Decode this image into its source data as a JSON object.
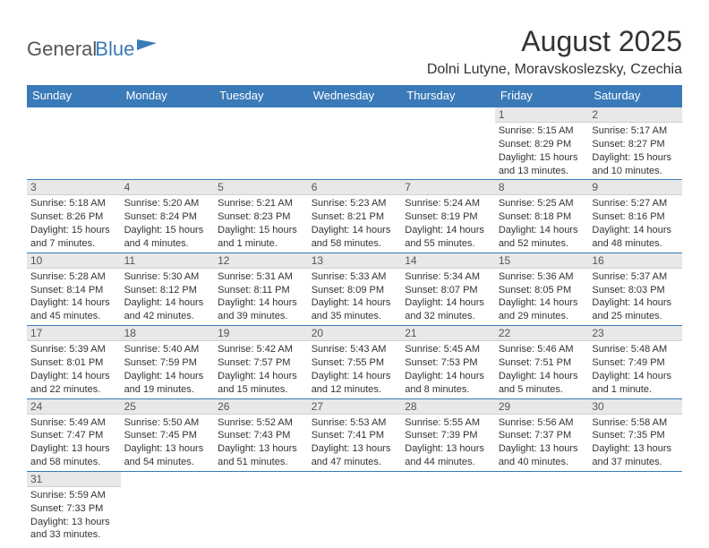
{
  "logo": {
    "part1": "General",
    "part2": "Blue"
  },
  "title": "August 2025",
  "location": "Dolni Lutyne, Moravskoslezsky, Czechia",
  "colors": {
    "header_bg": "#3a7ab8",
    "header_text": "#ffffff",
    "daynum_bg": "#e8e8e8",
    "border": "#3a7ab8",
    "body_text": "#333333"
  },
  "days_of_week": [
    "Sunday",
    "Monday",
    "Tuesday",
    "Wednesday",
    "Thursday",
    "Friday",
    "Saturday"
  ],
  "weeks": [
    [
      null,
      null,
      null,
      null,
      null,
      {
        "n": "1",
        "sunrise": "5:15 AM",
        "sunset": "8:29 PM",
        "daylight": "15 hours and 13 minutes."
      },
      {
        "n": "2",
        "sunrise": "5:17 AM",
        "sunset": "8:27 PM",
        "daylight": "15 hours and 10 minutes."
      }
    ],
    [
      {
        "n": "3",
        "sunrise": "5:18 AM",
        "sunset": "8:26 PM",
        "daylight": "15 hours and 7 minutes."
      },
      {
        "n": "4",
        "sunrise": "5:20 AM",
        "sunset": "8:24 PM",
        "daylight": "15 hours and 4 minutes."
      },
      {
        "n": "5",
        "sunrise": "5:21 AM",
        "sunset": "8:23 PM",
        "daylight": "15 hours and 1 minute."
      },
      {
        "n": "6",
        "sunrise": "5:23 AM",
        "sunset": "8:21 PM",
        "daylight": "14 hours and 58 minutes."
      },
      {
        "n": "7",
        "sunrise": "5:24 AM",
        "sunset": "8:19 PM",
        "daylight": "14 hours and 55 minutes."
      },
      {
        "n": "8",
        "sunrise": "5:25 AM",
        "sunset": "8:18 PM",
        "daylight": "14 hours and 52 minutes."
      },
      {
        "n": "9",
        "sunrise": "5:27 AM",
        "sunset": "8:16 PM",
        "daylight": "14 hours and 48 minutes."
      }
    ],
    [
      {
        "n": "10",
        "sunrise": "5:28 AM",
        "sunset": "8:14 PM",
        "daylight": "14 hours and 45 minutes."
      },
      {
        "n": "11",
        "sunrise": "5:30 AM",
        "sunset": "8:12 PM",
        "daylight": "14 hours and 42 minutes."
      },
      {
        "n": "12",
        "sunrise": "5:31 AM",
        "sunset": "8:11 PM",
        "daylight": "14 hours and 39 minutes."
      },
      {
        "n": "13",
        "sunrise": "5:33 AM",
        "sunset": "8:09 PM",
        "daylight": "14 hours and 35 minutes."
      },
      {
        "n": "14",
        "sunrise": "5:34 AM",
        "sunset": "8:07 PM",
        "daylight": "14 hours and 32 minutes."
      },
      {
        "n": "15",
        "sunrise": "5:36 AM",
        "sunset": "8:05 PM",
        "daylight": "14 hours and 29 minutes."
      },
      {
        "n": "16",
        "sunrise": "5:37 AM",
        "sunset": "8:03 PM",
        "daylight": "14 hours and 25 minutes."
      }
    ],
    [
      {
        "n": "17",
        "sunrise": "5:39 AM",
        "sunset": "8:01 PM",
        "daylight": "14 hours and 22 minutes."
      },
      {
        "n": "18",
        "sunrise": "5:40 AM",
        "sunset": "7:59 PM",
        "daylight": "14 hours and 19 minutes."
      },
      {
        "n": "19",
        "sunrise": "5:42 AM",
        "sunset": "7:57 PM",
        "daylight": "14 hours and 15 minutes."
      },
      {
        "n": "20",
        "sunrise": "5:43 AM",
        "sunset": "7:55 PM",
        "daylight": "14 hours and 12 minutes."
      },
      {
        "n": "21",
        "sunrise": "5:45 AM",
        "sunset": "7:53 PM",
        "daylight": "14 hours and 8 minutes."
      },
      {
        "n": "22",
        "sunrise": "5:46 AM",
        "sunset": "7:51 PM",
        "daylight": "14 hours and 5 minutes."
      },
      {
        "n": "23",
        "sunrise": "5:48 AM",
        "sunset": "7:49 PM",
        "daylight": "14 hours and 1 minute."
      }
    ],
    [
      {
        "n": "24",
        "sunrise": "5:49 AM",
        "sunset": "7:47 PM",
        "daylight": "13 hours and 58 minutes."
      },
      {
        "n": "25",
        "sunrise": "5:50 AM",
        "sunset": "7:45 PM",
        "daylight": "13 hours and 54 minutes."
      },
      {
        "n": "26",
        "sunrise": "5:52 AM",
        "sunset": "7:43 PM",
        "daylight": "13 hours and 51 minutes."
      },
      {
        "n": "27",
        "sunrise": "5:53 AM",
        "sunset": "7:41 PM",
        "daylight": "13 hours and 47 minutes."
      },
      {
        "n": "28",
        "sunrise": "5:55 AM",
        "sunset": "7:39 PM",
        "daylight": "13 hours and 44 minutes."
      },
      {
        "n": "29",
        "sunrise": "5:56 AM",
        "sunset": "7:37 PM",
        "daylight": "13 hours and 40 minutes."
      },
      {
        "n": "30",
        "sunrise": "5:58 AM",
        "sunset": "7:35 PM",
        "daylight": "13 hours and 37 minutes."
      }
    ],
    [
      {
        "n": "31",
        "sunrise": "5:59 AM",
        "sunset": "7:33 PM",
        "daylight": "13 hours and 33 minutes."
      },
      null,
      null,
      null,
      null,
      null,
      null
    ]
  ],
  "labels": {
    "sunrise": "Sunrise:",
    "sunset": "Sunset:",
    "daylight": "Daylight:"
  }
}
